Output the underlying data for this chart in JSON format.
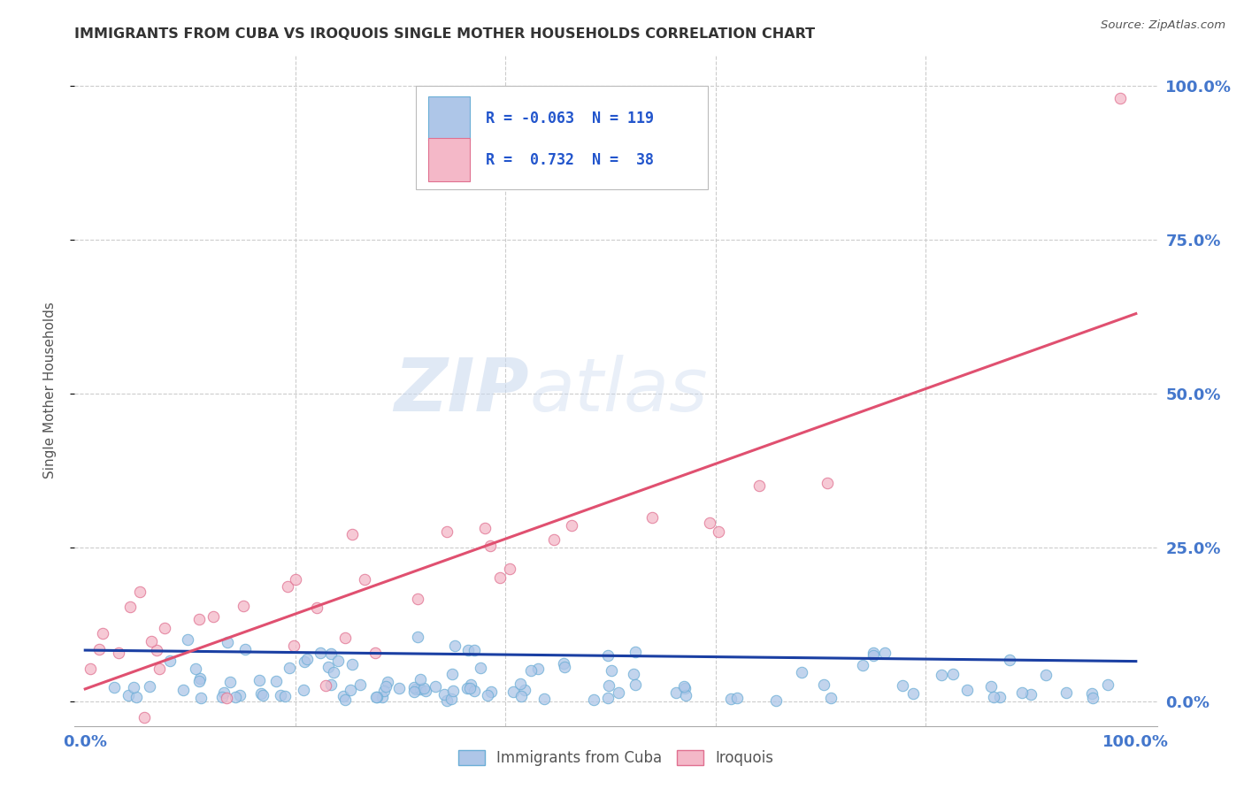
{
  "title": "IMMIGRANTS FROM CUBA VS IROQUOIS SINGLE MOTHER HOUSEHOLDS CORRELATION CHART",
  "source": "Source: ZipAtlas.com",
  "ylabel": "Single Mother Households",
  "ytick_labels": [
    "0.0%",
    "25.0%",
    "50.0%",
    "75.0%",
    "100.0%"
  ],
  "ytick_values": [
    0.0,
    0.25,
    0.5,
    0.75,
    1.0
  ],
  "xtick_labels": [
    "0.0%",
    "100.0%"
  ],
  "xtick_values": [
    0.0,
    1.0
  ],
  "xlim": [
    -0.01,
    1.02
  ],
  "ylim": [
    -0.04,
    1.05
  ],
  "cuba_color": "#aec6e8",
  "cuba_edge_color": "#6baed6",
  "iroquois_color": "#f4b8c8",
  "iroquois_edge_color": "#e07090",
  "cuba_line_color": "#1a3fa3",
  "iroquois_line_color": "#e05070",
  "cuba_R": -0.063,
  "cuba_N": 119,
  "iroquois_R": 0.732,
  "iroquois_N": 38,
  "watermark_zip": "ZIP",
  "watermark_atlas": "atlas",
  "background_color": "#ffffff",
  "grid_color": "#cccccc",
  "title_color": "#333333",
  "axis_label_color": "#4477cc",
  "legend_text_color": "#2255cc",
  "source_color": "#555555",
  "ylabel_color": "#555555",
  "bottom_legend_labels": [
    "Immigrants from Cuba",
    "Iroquois"
  ],
  "legend_r1": "R = -0.063  N = 119",
  "legend_r2": "R =  0.732  N =  38"
}
